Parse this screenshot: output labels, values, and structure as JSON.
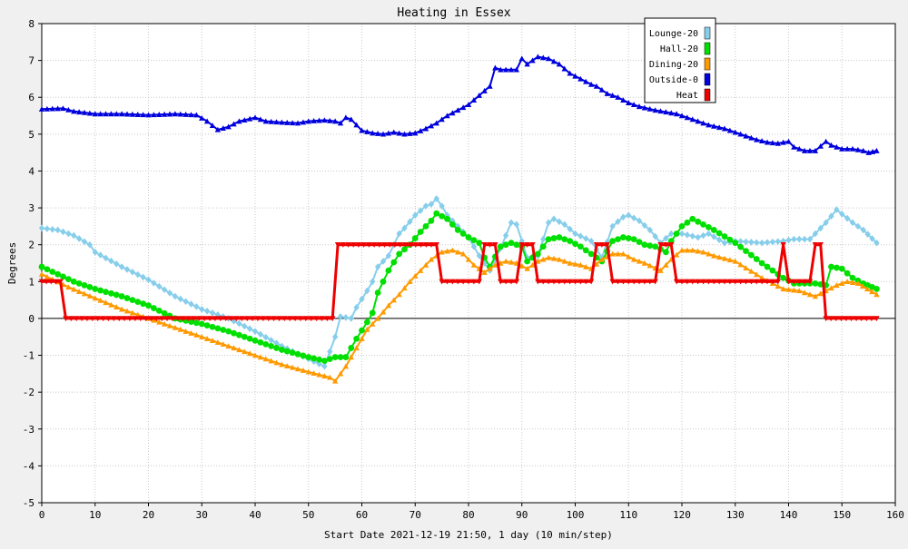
{
  "chart_data": {
    "type": "line",
    "title": "Heating in Essex",
    "xlabel": "Start Date 2021-12-19 21:50, 1 day (10 min/step)",
    "ylabel": "Degrees",
    "xlim": [
      0,
      160
    ],
    "ylim": [
      -5,
      8
    ],
    "xticks": [
      0,
      10,
      20,
      30,
      40,
      50,
      60,
      70,
      80,
      90,
      100,
      110,
      120,
      130,
      140,
      150,
      160
    ],
    "yticks": [
      -5,
      -4,
      -3,
      -2,
      -1,
      0,
      1,
      2,
      3,
      4,
      5,
      6,
      7,
      8
    ],
    "grid": true,
    "legend": "top-right",
    "series": [
      {
        "name": "Lounge-20",
        "color": "#87ceeb",
        "marker": "diamond",
        "points": [
          [
            0,
            2.45
          ],
          [
            3,
            2.4
          ],
          [
            6,
            2.25
          ],
          [
            9,
            2.0
          ],
          [
            10,
            1.8
          ],
          [
            15,
            1.4
          ],
          [
            20,
            1.05
          ],
          [
            25,
            0.6
          ],
          [
            30,
            0.25
          ],
          [
            35,
            0.0
          ],
          [
            40,
            -0.35
          ],
          [
            45,
            -0.75
          ],
          [
            50,
            -1.1
          ],
          [
            53,
            -1.3
          ],
          [
            55,
            -0.5
          ],
          [
            56,
            0.05
          ],
          [
            58,
            0.0
          ],
          [
            59,
            0.3
          ],
          [
            61,
            0.75
          ],
          [
            62,
            1.0
          ],
          [
            63,
            1.4
          ],
          [
            65,
            1.7
          ],
          [
            67,
            2.3
          ],
          [
            68,
            2.45
          ],
          [
            70,
            2.8
          ],
          [
            72,
            3.05
          ],
          [
            73,
            3.1
          ],
          [
            74,
            3.25
          ],
          [
            75,
            3.05
          ],
          [
            76,
            2.8
          ],
          [
            78,
            2.5
          ],
          [
            80,
            2.2
          ],
          [
            82,
            1.7
          ],
          [
            84,
            1.3
          ],
          [
            86,
            1.9
          ],
          [
            88,
            2.6
          ],
          [
            89,
            2.55
          ],
          [
            91,
            1.65
          ],
          [
            93,
            1.7
          ],
          [
            95,
            2.6
          ],
          [
            96,
            2.7
          ],
          [
            98,
            2.55
          ],
          [
            100,
            2.3
          ],
          [
            103,
            2.1
          ],
          [
            105,
            1.65
          ],
          [
            107,
            2.5
          ],
          [
            109,
            2.75
          ],
          [
            110,
            2.8
          ],
          [
            112,
            2.65
          ],
          [
            114,
            2.4
          ],
          [
            116,
            2.05
          ],
          [
            118,
            2.3
          ],
          [
            120,
            2.3
          ],
          [
            123,
            2.2
          ],
          [
            125,
            2.3
          ],
          [
            128,
            2.05
          ],
          [
            130,
            2.1
          ],
          [
            135,
            2.05
          ],
          [
            139,
            2.1
          ],
          [
            141,
            2.15
          ],
          [
            144,
            2.15
          ],
          [
            147,
            2.6
          ],
          [
            149,
            2.95
          ],
          [
            152,
            2.6
          ],
          [
            154,
            2.4
          ],
          [
            156.5,
            2.05
          ]
        ]
      },
      {
        "name": "Hall-20",
        "color": "#00e000",
        "marker": "circle",
        "points": [
          [
            0,
            1.4
          ],
          [
            3,
            1.2
          ],
          [
            6,
            1.0
          ],
          [
            10,
            0.8
          ],
          [
            15,
            0.6
          ],
          [
            20,
            0.35
          ],
          [
            25,
            0.0
          ],
          [
            30,
            -0.15
          ],
          [
            35,
            -0.35
          ],
          [
            40,
            -0.6
          ],
          [
            45,
            -0.85
          ],
          [
            50,
            -1.05
          ],
          [
            53,
            -1.15
          ],
          [
            55,
            -1.05
          ],
          [
            57,
            -1.05
          ],
          [
            59,
            -0.55
          ],
          [
            61,
            -0.1
          ],
          [
            62,
            0.15
          ],
          [
            63,
            0.7
          ],
          [
            65,
            1.3
          ],
          [
            67,
            1.75
          ],
          [
            69,
            2.0
          ],
          [
            71,
            2.35
          ],
          [
            73,
            2.65
          ],
          [
            74,
            2.85
          ],
          [
            76,
            2.7
          ],
          [
            78,
            2.4
          ],
          [
            80,
            2.2
          ],
          [
            82,
            2.05
          ],
          [
            83,
            1.65
          ],
          [
            84,
            1.4
          ],
          [
            86,
            1.95
          ],
          [
            88,
            2.05
          ],
          [
            90,
            1.95
          ],
          [
            91,
            1.55
          ],
          [
            93,
            1.75
          ],
          [
            95,
            2.15
          ],
          [
            97,
            2.2
          ],
          [
            99,
            2.1
          ],
          [
            101,
            1.95
          ],
          [
            103,
            1.75
          ],
          [
            105,
            1.55
          ],
          [
            107,
            2.1
          ],
          [
            109,
            2.2
          ],
          [
            111,
            2.15
          ],
          [
            113,
            2.0
          ],
          [
            115,
            1.95
          ],
          [
            117,
            1.8
          ],
          [
            118,
            2.1
          ],
          [
            120,
            2.5
          ],
          [
            122,
            2.7
          ],
          [
            124,
            2.55
          ],
          [
            126,
            2.4
          ],
          [
            130,
            2.05
          ],
          [
            135,
            1.5
          ],
          [
            139,
            1.1
          ],
          [
            141,
            0.95
          ],
          [
            145,
            0.95
          ],
          [
            147,
            0.9
          ],
          [
            148,
            1.4
          ],
          [
            150,
            1.35
          ],
          [
            152,
            1.1
          ],
          [
            154,
            0.95
          ],
          [
            156.5,
            0.8
          ]
        ]
      },
      {
        "name": "Dining-20",
        "color": "#ff9900",
        "marker": "triangle",
        "points": [
          [
            0,
            1.2
          ],
          [
            5,
            0.85
          ],
          [
            10,
            0.55
          ],
          [
            15,
            0.25
          ],
          [
            20,
            0.0
          ],
          [
            25,
            -0.25
          ],
          [
            30,
            -0.5
          ],
          [
            35,
            -0.75
          ],
          [
            40,
            -1.0
          ],
          [
            45,
            -1.25
          ],
          [
            50,
            -1.45
          ],
          [
            54,
            -1.6
          ],
          [
            55,
            -1.7
          ],
          [
            57,
            -1.3
          ],
          [
            59,
            -0.8
          ],
          [
            61,
            -0.3
          ],
          [
            63,
            0.0
          ],
          [
            65,
            0.35
          ],
          [
            67,
            0.65
          ],
          [
            69,
            1.0
          ],
          [
            71,
            1.3
          ],
          [
            73,
            1.6
          ],
          [
            75,
            1.8
          ],
          [
            77,
            1.85
          ],
          [
            79,
            1.75
          ],
          [
            81,
            1.45
          ],
          [
            83,
            1.25
          ],
          [
            85,
            1.45
          ],
          [
            87,
            1.55
          ],
          [
            89,
            1.5
          ],
          [
            91,
            1.35
          ],
          [
            93,
            1.55
          ],
          [
            95,
            1.65
          ],
          [
            97,
            1.6
          ],
          [
            99,
            1.5
          ],
          [
            101,
            1.45
          ],
          [
            103,
            1.35
          ],
          [
            105,
            1.6
          ],
          [
            107,
            1.75
          ],
          [
            109,
            1.75
          ],
          [
            111,
            1.6
          ],
          [
            113,
            1.5
          ],
          [
            116,
            1.3
          ],
          [
            118,
            1.6
          ],
          [
            120,
            1.85
          ],
          [
            122,
            1.85
          ],
          [
            124,
            1.8
          ],
          [
            126,
            1.7
          ],
          [
            130,
            1.55
          ],
          [
            135,
            1.1
          ],
          [
            139,
            0.8
          ],
          [
            142,
            0.75
          ],
          [
            145,
            0.6
          ],
          [
            147,
            0.75
          ],
          [
            149,
            0.9
          ],
          [
            151,
            1.0
          ],
          [
            153,
            0.95
          ],
          [
            156.5,
            0.65
          ]
        ]
      },
      {
        "name": "Outside-0",
        "color": "#0000dd",
        "marker": "triangle",
        "points": [
          [
            0,
            5.68
          ],
          [
            4,
            5.7
          ],
          [
            6,
            5.62
          ],
          [
            10,
            5.55
          ],
          [
            15,
            5.55
          ],
          [
            20,
            5.52
          ],
          [
            25,
            5.55
          ],
          [
            29,
            5.52
          ],
          [
            31,
            5.35
          ],
          [
            33,
            5.12
          ],
          [
            35,
            5.2
          ],
          [
            37,
            5.35
          ],
          [
            40,
            5.45
          ],
          [
            42,
            5.35
          ],
          [
            45,
            5.32
          ],
          [
            48,
            5.3
          ],
          [
            50,
            5.35
          ],
          [
            53,
            5.38
          ],
          [
            55,
            5.35
          ],
          [
            56,
            5.3
          ],
          [
            57,
            5.45
          ],
          [
            58,
            5.4
          ],
          [
            60,
            5.1
          ],
          [
            62,
            5.03
          ],
          [
            64,
            5.0
          ],
          [
            66,
            5.05
          ],
          [
            68,
            5.0
          ],
          [
            70,
            5.03
          ],
          [
            72,
            5.15
          ],
          [
            74,
            5.3
          ],
          [
            76,
            5.5
          ],
          [
            78,
            5.65
          ],
          [
            80,
            5.8
          ],
          [
            82,
            6.05
          ],
          [
            84,
            6.3
          ],
          [
            85,
            6.8
          ],
          [
            86,
            6.75
          ],
          [
            88,
            6.75
          ],
          [
            89,
            6.75
          ],
          [
            90,
            7.05
          ],
          [
            91,
            6.9
          ],
          [
            92,
            7.0
          ],
          [
            93,
            7.1
          ],
          [
            95,
            7.05
          ],
          [
            97,
            6.9
          ],
          [
            99,
            6.65
          ],
          [
            101,
            6.5
          ],
          [
            103,
            6.35
          ],
          [
            104,
            6.3
          ],
          [
            106,
            6.1
          ],
          [
            108,
            6.0
          ],
          [
            110,
            5.85
          ],
          [
            112,
            5.75
          ],
          [
            115,
            5.65
          ],
          [
            117,
            5.6
          ],
          [
            119,
            5.55
          ],
          [
            121,
            5.45
          ],
          [
            123,
            5.35
          ],
          [
            125,
            5.25
          ],
          [
            128,
            5.15
          ],
          [
            130,
            5.05
          ],
          [
            132,
            4.95
          ],
          [
            134,
            4.85
          ],
          [
            136,
            4.78
          ],
          [
            138,
            4.75
          ],
          [
            140,
            4.8
          ],
          [
            141,
            4.65
          ],
          [
            143,
            4.55
          ],
          [
            145,
            4.55
          ],
          [
            147,
            4.8
          ],
          [
            148,
            4.7
          ],
          [
            150,
            4.6
          ],
          [
            152,
            4.6
          ],
          [
            154,
            4.55
          ],
          [
            155,
            4.5
          ],
          [
            156.5,
            4.55
          ]
        ]
      },
      {
        "name": "Heat",
        "color": "#ee0000",
        "marker": "triangle-down",
        "step": true,
        "points": [
          [
            0,
            1
          ],
          [
            3.5,
            1
          ],
          [
            4.5,
            0
          ],
          [
            54.5,
            0
          ],
          [
            55.5,
            2
          ],
          [
            74,
            2
          ],
          [
            75,
            1
          ],
          [
            82,
            1
          ],
          [
            83,
            2
          ],
          [
            85,
            2
          ],
          [
            86,
            1
          ],
          [
            89,
            1
          ],
          [
            90,
            2
          ],
          [
            92,
            2
          ],
          [
            93,
            1
          ],
          [
            103,
            1
          ],
          [
            104,
            2
          ],
          [
            106,
            2
          ],
          [
            107,
            1
          ],
          [
            115,
            1
          ],
          [
            116,
            2
          ],
          [
            118,
            2
          ],
          [
            119,
            1
          ],
          [
            138,
            1
          ],
          [
            139,
            2
          ],
          [
            140,
            1
          ],
          [
            144,
            1
          ],
          [
            145,
            2
          ],
          [
            146,
            2
          ],
          [
            147,
            0
          ],
          [
            156.5,
            0
          ]
        ]
      }
    ]
  }
}
